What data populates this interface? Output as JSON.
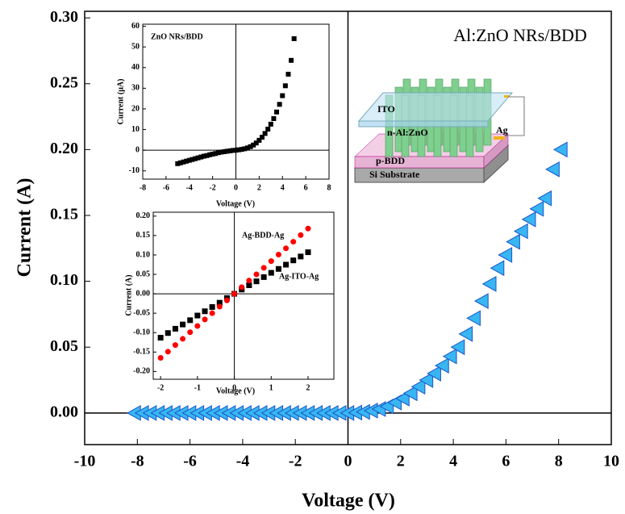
{
  "chart_data": [
    {
      "type": "scatter",
      "annotation": "Al:ZnO NRs/BDD",
      "xlabel": "Voltage (V)",
      "ylabel": "Current (A)",
      "xlim": [
        -10,
        10
      ],
      "ylim": [
        -0.024,
        0.305
      ],
      "xticks": [
        -10,
        -8,
        -6,
        -4,
        -2,
        0,
        2,
        4,
        6,
        8,
        10
      ],
      "yticks": [
        {
          "value": 0,
          "label": "0.00"
        },
        0.05,
        {
          "value": 0.1,
          "label": "0.10"
        },
        0.15,
        {
          "value": 0.2,
          "label": "0.20"
        },
        0.25,
        {
          "value": 0.3,
          "label": "0.30"
        }
      ],
      "marker": "triangle-left",
      "color": "#38b6f2",
      "x": [
        -8.1,
        -7.8,
        -7.5,
        -7.2,
        -6.9,
        -6.6,
        -6.3,
        -6.0,
        -5.7,
        -5.4,
        -5.1,
        -4.8,
        -4.5,
        -4.2,
        -3.9,
        -3.6,
        -3.3,
        -3.0,
        -2.7,
        -2.4,
        -2.1,
        -1.8,
        -1.5,
        -1.2,
        -0.9,
        -0.6,
        -0.3,
        0,
        0.3,
        0.6,
        0.9,
        1.2,
        1.5,
        1.8,
        2.1,
        2.4,
        2.7,
        3.0,
        3.3,
        3.6,
        3.9,
        4.2,
        4.5,
        4.8,
        5.1,
        5.4,
        5.7,
        6.0,
        6.3,
        6.6,
        6.9,
        7.2,
        7.5,
        7.8,
        8.1
      ],
      "values": [
        0,
        0,
        0,
        0,
        0,
        0,
        0,
        0,
        0,
        0,
        0,
        0,
        0,
        0,
        0,
        0,
        0,
        0,
        0,
        0,
        0,
        0,
        0,
        0,
        0,
        0,
        0,
        0,
        0.0003,
        0.0008,
        0.0018,
        0.003,
        0.005,
        0.008,
        0.011,
        0.015,
        0.02,
        0.025,
        0.03,
        0.036,
        0.043,
        0.05,
        0.06,
        0.072,
        0.085,
        0.098,
        0.11,
        0.12,
        0.13,
        0.138,
        0.147,
        0.155,
        0.163,
        0.185,
        0.2
      ]
    },
    {
      "type": "scatter",
      "title": "ZnO NRs/BDD",
      "xlabel": "Voltage (V)",
      "ylabel": "Current (μA)",
      "xlim": [
        -8,
        8
      ],
      "ylim": [
        -14,
        61
      ],
      "xticks": [
        -8,
        -6,
        -4,
        -2,
        0,
        2,
        4,
        6,
        8
      ],
      "yticks": [
        -10,
        0,
        10,
        20,
        30,
        40,
        50,
        60
      ],
      "marker": "square",
      "color": "#000000",
      "x": [
        -5,
        -4.75,
        -4.5,
        -4.25,
        -4,
        -3.75,
        -3.5,
        -3.25,
        -3,
        -2.75,
        -2.5,
        -2.25,
        -2,
        -1.75,
        -1.5,
        -1.25,
        -1,
        -0.75,
        -0.5,
        -0.25,
        0,
        0.25,
        0.5,
        0.75,
        1,
        1.25,
        1.5,
        1.75,
        2,
        2.25,
        2.5,
        2.75,
        3,
        3.25,
        3.5,
        3.75,
        4,
        4.25,
        4.5,
        4.75,
        5
      ],
      "values": [
        -6.5,
        -6.1,
        -5.7,
        -5.3,
        -4.9,
        -4.5,
        -4.1,
        -3.7,
        -3.3,
        -2.9,
        -2.6,
        -2.2,
        -1.9,
        -1.6,
        -1.2,
        -0.9,
        -0.7,
        -0.5,
        -0.3,
        -0.1,
        0,
        0.2,
        0.4,
        0.7,
        1.1,
        1.7,
        2.5,
        3.5,
        4.8,
        6.3,
        8.1,
        10.2,
        12.6,
        15.3,
        18.5,
        22.2,
        26.4,
        31.2,
        36.8,
        43.5,
        54
      ]
    },
    {
      "type": "scatter",
      "xlabel": "Voltage (V)",
      "ylabel": "Current (A)",
      "xlim": [
        -2.2,
        2.7
      ],
      "ylim": [
        -0.22,
        0.21
      ],
      "xticks": [
        -2,
        -1,
        0,
        1,
        2
      ],
      "yticks": [
        {
          "value": -0.2,
          "label": "-0.20"
        },
        -0.15,
        {
          "value": -0.1,
          "label": "-0.10"
        },
        -0.05,
        {
          "value": 0,
          "label": "0.00"
        },
        0.05,
        {
          "value": 0.1,
          "label": "0.10"
        },
        0.15,
        {
          "value": 0.2,
          "label": "0.20"
        }
      ],
      "x": [
        -2,
        -1.8,
        -1.6,
        -1.4,
        -1.2,
        -1,
        -0.8,
        -0.6,
        -0.4,
        -0.2,
        0,
        0.2,
        0.4,
        0.6,
        0.8,
        1,
        1.2,
        1.4,
        1.6,
        1.8,
        2
      ],
      "series": [
        {
          "name": "Ag-ITO-Ag",
          "color": "#000000",
          "marker": "square",
          "values": [
            -0.113,
            -0.101,
            -0.09,
            -0.079,
            -0.068,
            -0.056,
            -0.045,
            -0.034,
            -0.023,
            -0.011,
            0,
            0.011,
            0.022,
            0.032,
            0.043,
            0.054,
            0.064,
            0.075,
            0.086,
            0.096,
            0.107
          ]
        },
        {
          "name": "Ag-BDD-Ag",
          "color": "#ff0000",
          "marker": "circle",
          "values": [
            -0.165,
            -0.149,
            -0.132,
            -0.116,
            -0.099,
            -0.083,
            -0.066,
            -0.05,
            -0.033,
            -0.017,
            0,
            0.017,
            0.034,
            0.05,
            0.067,
            0.084,
            0.101,
            0.117,
            0.134,
            0.151,
            0.168
          ]
        }
      ]
    }
  ],
  "schematic": {
    "labels": [
      "ITO",
      "n-Al:ZnO",
      "Ag",
      "p-BDD",
      "Si Substrate"
    ]
  }
}
